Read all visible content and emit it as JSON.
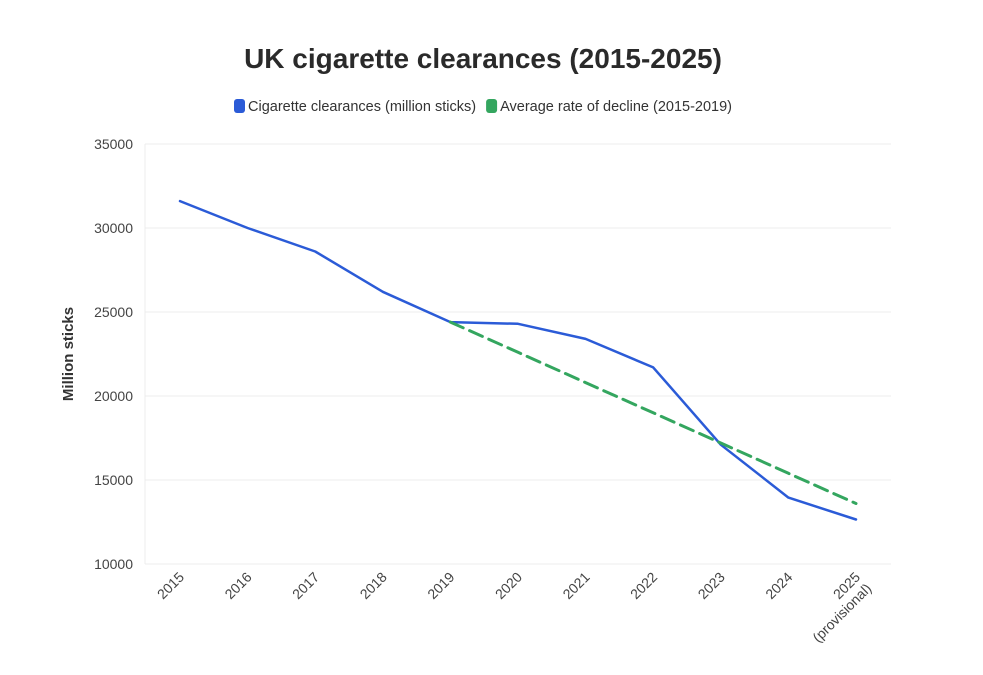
{
  "chart_data": {
    "type": "line",
    "title": "UK cigarette clearances (2015-2025)",
    "xlabel": "",
    "ylabel": "Million sticks",
    "categories": [
      "2015",
      "2016",
      "2017",
      "2018",
      "2019",
      "2020",
      "2021",
      "2022",
      "2023",
      "2024",
      "2025"
    ],
    "category_sublabels": [
      "",
      "",
      "",
      "",
      "",
      "",
      "",
      "",
      "",
      "",
      "(provisional)"
    ],
    "ylim": [
      10000,
      35000
    ],
    "yticks": [
      10000,
      15000,
      20000,
      25000,
      30000,
      35000
    ],
    "grid": true,
    "legend_position": "top",
    "series": [
      {
        "name": "Cigarette clearances (million sticks)",
        "color": "#2b5bd7",
        "style": "solid",
        "values": [
          31600,
          30000,
          28600,
          26200,
          24400,
          24300,
          23400,
          21700,
          17100,
          13950,
          12650
        ]
      },
      {
        "name": "Average rate of decline (2015-2019)",
        "color": "#34a65f",
        "style": "dashed",
        "values": [
          null,
          null,
          null,
          null,
          24400,
          22600,
          20800,
          19000,
          17200,
          15400,
          13600
        ]
      }
    ]
  }
}
